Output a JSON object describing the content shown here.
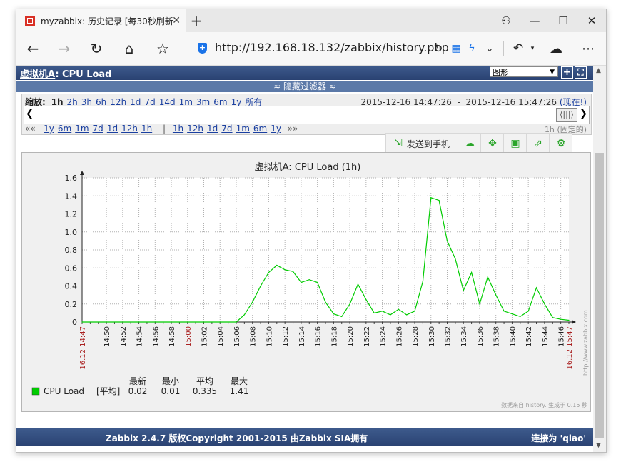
{
  "browser": {
    "tab_title": "myzabbix: 历史记录 [每30秒刷新一",
    "url": "http://192.168.18.132/zabbix/history.php"
  },
  "zabbix": {
    "page_title_host": "虚拟机A",
    "page_title_item": ": CPU Load",
    "view_select": "图形",
    "filter_toggle": "≈ 隐藏过滤器 ≈",
    "zoom_label": "缩放:",
    "zoom_options": [
      "1h",
      "2h",
      "3h",
      "6h",
      "12h",
      "1d",
      "7d",
      "14d",
      "1m",
      "3m",
      "6m",
      "1y",
      "所有"
    ],
    "range_from": "2015-12-16 14:47:26",
    "range_sep": "-",
    "range_to": "2015-12-16 15:47:26",
    "range_now": "(现在!)",
    "nav_back": "««",
    "nav_back_options": [
      "1y",
      "6m",
      "1m",
      "7d",
      "1d",
      "12h",
      "1h"
    ],
    "nav_sep": "|",
    "nav_fwd_options": [
      "1h",
      "12h",
      "1d",
      "7d",
      "1m",
      "6m",
      "1y"
    ],
    "nav_fwd": "»»",
    "nav_right": "1h  (固定的)"
  },
  "toolbar": {
    "send_label": "发送到手机",
    "icons": [
      "cloud-icon",
      "fullscreen-icon",
      "save-icon",
      "export-icon",
      "settings-icon"
    ]
  },
  "legend": {
    "series_name": "CPU Load",
    "series_type": "[平均]",
    "col_headers": [
      "最新",
      "最小",
      "平均",
      "最大"
    ],
    "values": [
      "0.02",
      "0.01",
      "0.335",
      "1.41"
    ],
    "watermark": "http://www.zabbix.com",
    "footnote": "数据来自 history. 生成于 0.15 秒"
  },
  "chart_data": {
    "type": "line",
    "title": "虚拟机A: CPU Load (1h)",
    "y_ticks": [
      "0",
      "0.2",
      "0.4",
      "0.6",
      "0.8",
      "1.0",
      "1.2",
      "1.4",
      "1.6"
    ],
    "ylim": [
      0,
      1.6
    ],
    "x_start_label": "16.12 14:47",
    "x_end_label": "16.12 15:47",
    "x_ticks": [
      "14:50",
      "14:52",
      "14:54",
      "14:56",
      "14:58",
      "15:00",
      "15:02",
      "15:04",
      "15:06",
      "15:08",
      "15:10",
      "15:12",
      "15:14",
      "15:16",
      "15:18",
      "15:20",
      "15:22",
      "15:24",
      "15:26",
      "15:28",
      "15:30",
      "15:32",
      "15:34",
      "15:36",
      "15:38",
      "15:40",
      "15:42",
      "15:44",
      "15:46"
    ],
    "x_tick_red": [
      "15:00"
    ],
    "series": [
      {
        "name": "CPU Load",
        "color": "#00cc00",
        "x_min": [
          0,
          19,
          20,
          21,
          22,
          23,
          24,
          25,
          26,
          27,
          28,
          29,
          30,
          31,
          32,
          33,
          34,
          35,
          36,
          37,
          38,
          39,
          40,
          41,
          42,
          43,
          44,
          45,
          46,
          47,
          48,
          49,
          50,
          51,
          52,
          53,
          54,
          55,
          56,
          57,
          58,
          59,
          60
        ],
        "y": [
          0,
          0,
          0.08,
          0.22,
          0.4,
          0.55,
          0.63,
          0.58,
          0.56,
          0.44,
          0.47,
          0.44,
          0.22,
          0.09,
          0.06,
          0.2,
          0.42,
          0.25,
          0.1,
          0.12,
          0.08,
          0.14,
          0.08,
          0.12,
          0.45,
          1.38,
          1.35,
          0.9,
          0.7,
          0.35,
          0.55,
          0.2,
          0.5,
          0.3,
          0.12,
          0.09,
          0.06,
          0.12,
          0.38,
          0.2,
          0.05,
          0.03,
          0.02
        ]
      }
    ]
  }
}
